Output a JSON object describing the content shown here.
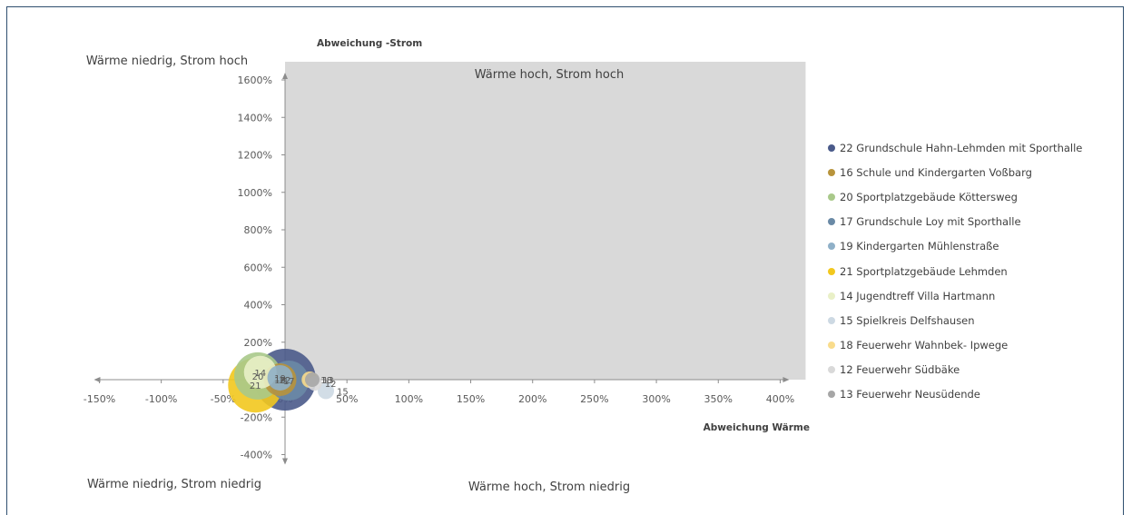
{
  "chart_data": {
    "type": "scatter",
    "xlabel": "Abweichung Wärme",
    "ylabel": "Abweichung -Strom",
    "xlim": [
      -150,
      400
    ],
    "ylim": [
      -400,
      1600
    ],
    "x_ticks": [
      "-150%",
      "-100%",
      "-50%",
      "0%",
      "50%",
      "100%",
      "150%",
      "200%",
      "250%",
      "300%",
      "350%",
      "400%"
    ],
    "y_ticks": [
      "-400%",
      "-200%",
      "0%",
      "200%",
      "400%",
      "600%",
      "800%",
      "1000%",
      "1200%",
      "1400%",
      "1600%"
    ],
    "quadrants": {
      "top_left": "Wärme niedrig, Strom hoch",
      "top_right": "Wärme hoch, Strom hoch",
      "bottom_left": "Wärme niedrig, Strom niedrig",
      "bottom_right": "Wärme hoch, Strom niedrig"
    },
    "series": [
      {
        "name": "22 Grundschule Hahn-Lehmden mit Sporthalle",
        "label": "22",
        "x": 0,
        "y": 0,
        "size": 34,
        "color": "#4a5a8a"
      },
      {
        "name": "16 Schule und Kindergarten Voßbarg",
        "label": "16",
        "x": -4,
        "y": 0,
        "size": 18,
        "color": "#b8943c"
      },
      {
        "name": "20 Sportplatzgebäude Köttersweg",
        "label": "20",
        "x": -22,
        "y": 20,
        "size": 26,
        "color": "#a9c98a"
      },
      {
        "name": "17 Grundschule Loy mit Sporthalle",
        "label": "17",
        "x": 3,
        "y": -5,
        "size": 22,
        "color": "#6a8aa6"
      },
      {
        "name": "19 Kindergarten Mühlenstraße",
        "label": "19",
        "x": -4,
        "y": 10,
        "size": 14,
        "color": "#8fb0c8"
      },
      {
        "name": "21 Sportplatzgebäude Lehmden",
        "label": "21",
        "x": -24,
        "y": -30,
        "size": 30,
        "color": "#f2c81e"
      },
      {
        "name": "14 Jugendtreff Villa Hartmann",
        "label": "14",
        "x": -20,
        "y": 40,
        "size": 18,
        "color": "#e9f0c7"
      },
      {
        "name": "15 Spielkreis Delfshausen",
        "label": "15",
        "x": 33,
        "y": -60,
        "size": 9,
        "color": "#cdd9e3"
      },
      {
        "name": "18 Feuerwehr Wahnbek- Ipwege",
        "label": "18",
        "x": 20,
        "y": 0,
        "size": 9,
        "color": "#f9dc8c"
      },
      {
        "name": "12 Feuerwehr Südbäke",
        "label": "12",
        "x": 24,
        "y": -20,
        "size": 8,
        "color": "#d9d9d9"
      },
      {
        "name": "13 Feuerwehr Neusüdende",
        "label": "13",
        "x": 22,
        "y": 0,
        "size": 8,
        "color": "#a6a6a6"
      }
    ],
    "legend_position": "right",
    "grid": false
  }
}
